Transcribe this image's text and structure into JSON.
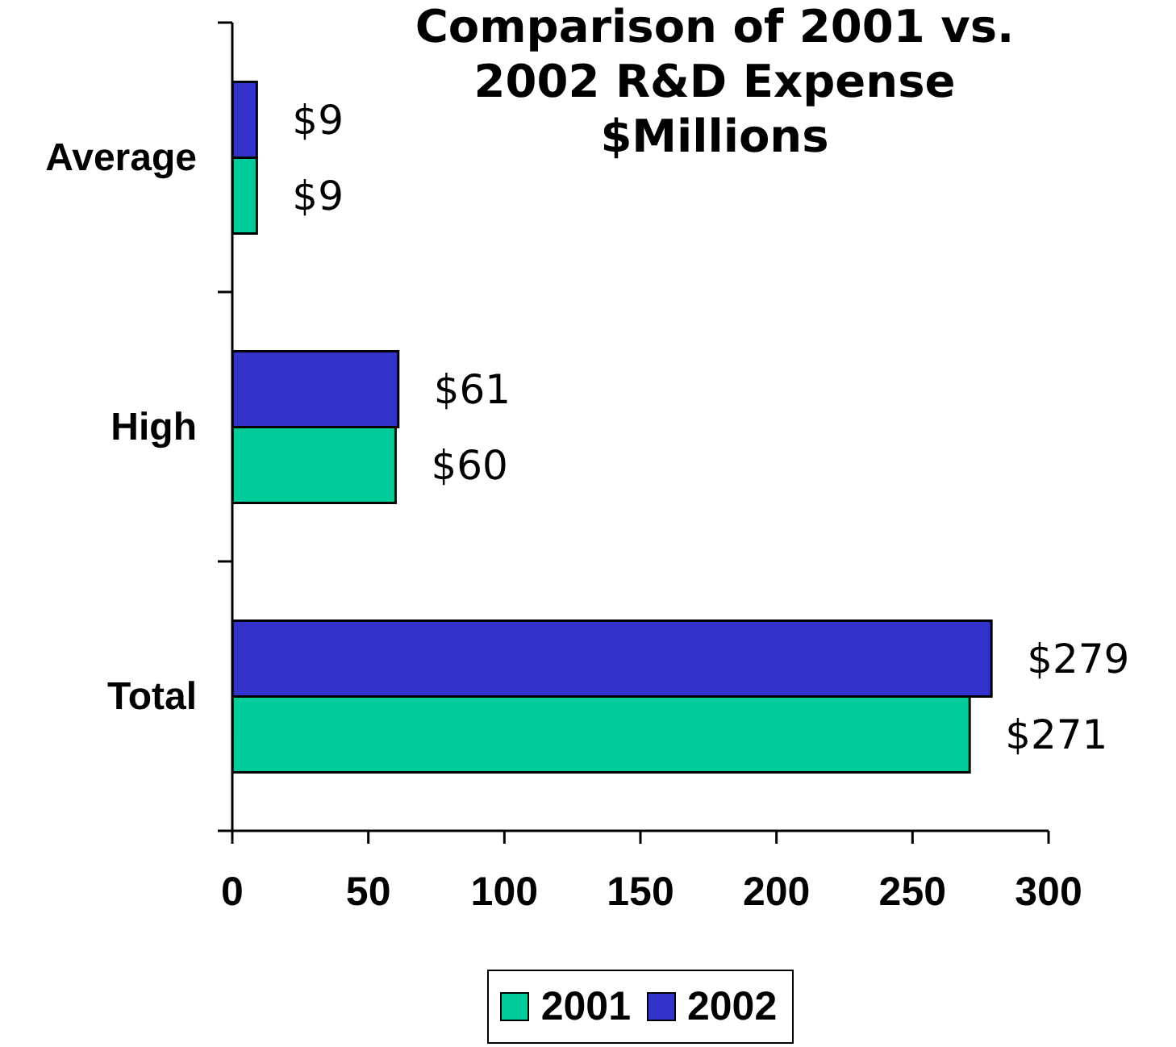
{
  "chart_data": {
    "type": "bar",
    "orientation": "horizontal",
    "title": "Comparison of 2001 vs. 2002 R&D Expense",
    "subtitle": "$Millions",
    "categories": [
      "Average",
      "High",
      "Total"
    ],
    "series": [
      {
        "name": "2001",
        "color": "#00cc99",
        "values": [
          9,
          60,
          271
        ],
        "value_labels": [
          "$9",
          "$60",
          "$271"
        ]
      },
      {
        "name": "2002",
        "color": "#3333cc",
        "values": [
          9,
          61,
          279
        ],
        "value_labels": [
          "$9",
          "$61",
          "$279"
        ]
      }
    ],
    "xlim": [
      0,
      300
    ],
    "xticks": [
      0,
      50,
      100,
      150,
      200,
      250,
      300
    ],
    "legend": "bottom"
  }
}
